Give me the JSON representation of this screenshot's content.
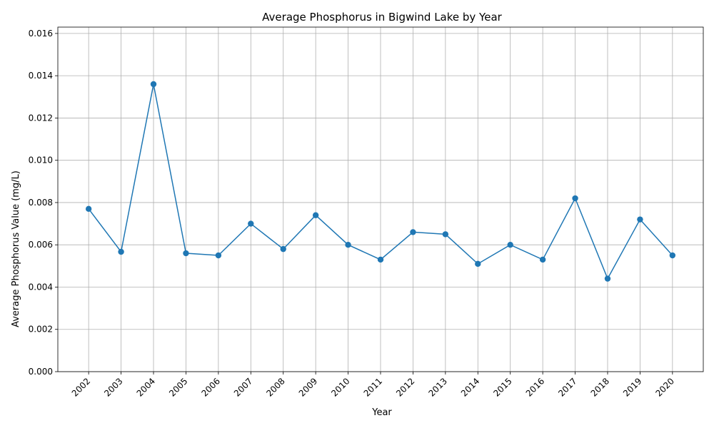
{
  "chart_data": {
    "type": "line",
    "title": "Average Phosphorus in Bigwind Lake by Year",
    "xlabel": "Year",
    "ylabel": "Average Phosphorus Value (mg/L)",
    "categories": [
      "2002",
      "2003",
      "2004",
      "2005",
      "2006",
      "2007",
      "2008",
      "2009",
      "2010",
      "2011",
      "2012",
      "2013",
      "2014",
      "2015",
      "2016",
      "2017",
      "2018",
      "2019",
      "2020"
    ],
    "series": [
      {
        "values": [
          0.0077,
          0.00567,
          0.0136,
          0.0056,
          0.0055,
          0.007,
          0.0058,
          0.0074,
          0.006,
          0.0053,
          0.0066,
          0.0065,
          0.0051,
          0.006,
          0.0053,
          0.0082,
          0.0044,
          0.0072,
          0.0055
        ],
        "color": "#1f77b4",
        "marker": "circle"
      }
    ],
    "ylim": [
      0,
      0.0163
    ],
    "yticks": [
      "0.000",
      "0.002",
      "0.004",
      "0.006",
      "0.008",
      "0.010",
      "0.012",
      "0.014",
      "0.016"
    ],
    "ytick_values": [
      0,
      0.002,
      0.004,
      0.006,
      0.008,
      0.01,
      0.012,
      0.014,
      0.016
    ],
    "grid": true,
    "legend": "none",
    "xtick_rotation": "45 degrees"
  }
}
